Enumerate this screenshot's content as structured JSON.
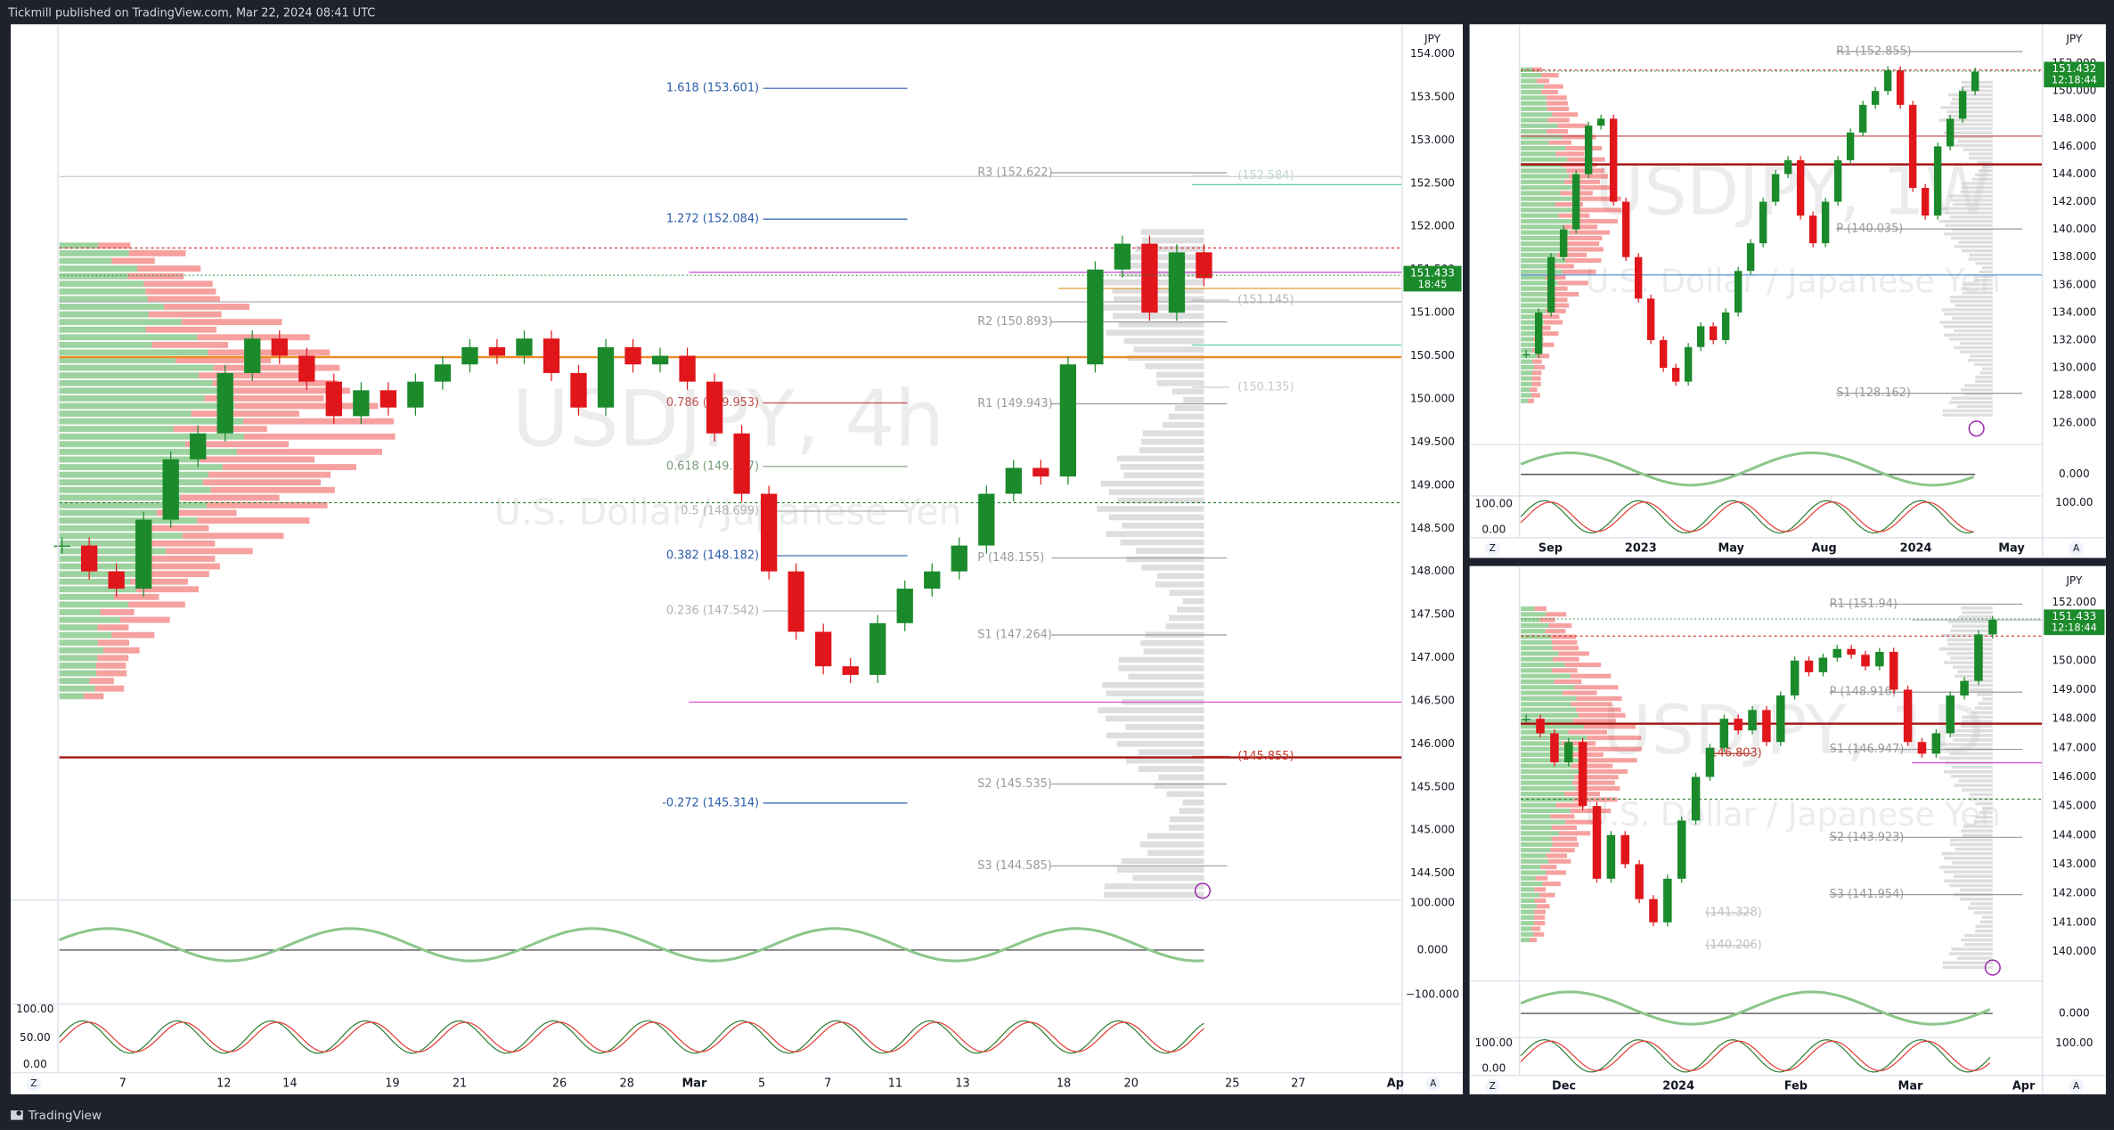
{
  "header": {
    "publisher": "Tickmill published on TradingView.com, Mar 22, 2024 08:41 UTC"
  },
  "footer": {
    "brand": "TradingView"
  },
  "panels": [
    {
      "currency": "JPY",
      "watermark_symbol": "USDJPY, 4h",
      "watermark_name": "U.S. Dollar / Japanese Yen",
      "price_ticks": [
        "154.000",
        "153.500",
        "153.000",
        "152.500",
        "152.000",
        "151.500",
        "151.000",
        "150.500",
        "150.000",
        "149.500",
        "149.000",
        "148.500",
        "148.000",
        "147.500",
        "147.000",
        "146.500",
        "146.000",
        "145.500",
        "145.000",
        "144.500"
      ],
      "last_price": "151.433",
      "countdown": "18:45",
      "osc_ticks": [
        "100.000",
        "0.000",
        "−100.000"
      ],
      "stoch_ticks": [
        "100.00",
        "50.00",
        "0.00"
      ],
      "time_labels": [
        "7",
        "12",
        "14",
        "19",
        "21",
        "26",
        "28",
        "Mar",
        "5",
        "7",
        "11",
        "13",
        "18",
        "20",
        "25",
        "27",
        "Ap"
      ],
      "fib_labels": [
        {
          "text": "1.618 (153.601)",
          "color": "#2a5caa"
        },
        {
          "text": "1.272 (152.084)",
          "color": "#2a5caa"
        },
        {
          "text": "0.786 (149.953)",
          "color": "#c0504d"
        },
        {
          "text": "0.618 (149.217)",
          "color": "#7a9a7a"
        },
        {
          "text": "0.5 (148.699)",
          "color": "#b0b0b0"
        },
        {
          "text": "0.382 (148.182)",
          "color": "#2a5caa"
        },
        {
          "text": "0.236 (147.542)",
          "color": "#b0b0b0"
        },
        {
          "text": "-0.272 (145.314)",
          "color": "#2a5caa"
        }
      ],
      "pivot_labels": [
        {
          "text": "R3 (152.622)",
          "color": "#9a9a9a"
        },
        {
          "text": "R2 (150.893)",
          "color": "#9a9a9a"
        },
        {
          "text": "R1 (149.943)",
          "color": "#9a9a9a"
        },
        {
          "text": "P (148.155)",
          "color": "#9a9a9a"
        },
        {
          "text": "S1 (147.264)",
          "color": "#9a9a9a"
        },
        {
          "text": "S2 (145.535)",
          "color": "#9a9a9a"
        },
        {
          "text": "S3 (144.585)",
          "color": "#9a9a9a"
        }
      ],
      "level_labels": [
        {
          "text": "(152.584)",
          "color": "#bfd6d0"
        },
        {
          "text": "(151.145)",
          "color": "#b8b8b8"
        },
        {
          "text": "(150.135)",
          "color": "#c8c8c8"
        },
        {
          "text": "(145.855)",
          "color": "#c0392b"
        }
      ],
      "closes": [
        148.3,
        148.0,
        147.8,
        148.6,
        149.3,
        149.6,
        150.3,
        150.7,
        150.5,
        150.2,
        149.8,
        150.1,
        149.9,
        150.2,
        150.4,
        150.6,
        150.5,
        150.7,
        150.3,
        149.9,
        150.6,
        150.4,
        150.5,
        150.2,
        149.6,
        148.9,
        148.0,
        147.3,
        146.9,
        146.8,
        147.4,
        147.8,
        148.0,
        148.3,
        148.9,
        149.2,
        149.1,
        150.4,
        151.5,
        151.8,
        151.0,
        151.7,
        151.4
      ],
      "scale_buttons": [
        "Z",
        "A"
      ]
    },
    {
      "currency": "JPY",
      "watermark_symbol": "USDJPY, 1W",
      "watermark_name": "U.S. Dollar / Japanese Yen",
      "price_ticks": [
        "152.000",
        "150.000",
        "148.000",
        "146.000",
        "144.000",
        "142.000",
        "140.000",
        "138.000",
        "136.000",
        "134.000",
        "132.000",
        "130.000",
        "128.000",
        "126.000"
      ],
      "last_price": "151.432",
      "countdown": "12:18:44",
      "osc_ticks": [
        "0.000",
        "100.00"
      ],
      "stoch_ticks": [
        "100.00",
        "0.00"
      ],
      "time_labels": [
        "Sep",
        "2023",
        "May",
        "Aug",
        "2024",
        "May"
      ],
      "pivot_labels": [
        {
          "text": "R1 (152.855)",
          "color": "#9a9a9a"
        },
        {
          "text": "P (140.035)",
          "color": "#9a9a9a"
        },
        {
          "text": "S1 (128.162)",
          "color": "#9a9a9a"
        }
      ],
      "closes": [
        131,
        134,
        138,
        140,
        144,
        147.5,
        148,
        142,
        138,
        135,
        132,
        130,
        129,
        131.5,
        133,
        132,
        134,
        137,
        139,
        142,
        144,
        145,
        141,
        139,
        142,
        145,
        147,
        149,
        150,
        151.5,
        149,
        143,
        141,
        146,
        148,
        150,
        151.4
      ],
      "scale_buttons": [
        "Z",
        "A"
      ]
    },
    {
      "currency": "JPY",
      "watermark_symbol": "USDJPY, 1D",
      "watermark_name": "U.S. Dollar / Japanese Yen",
      "price_ticks": [
        "152.000",
        "151.000",
        "150.000",
        "149.000",
        "148.000",
        "147.000",
        "146.000",
        "145.000",
        "144.000",
        "143.000",
        "142.000",
        "141.000",
        "140.000"
      ],
      "last_price": "151.433",
      "countdown": "12:18:44",
      "osc_ticks": [
        "0.000",
        "100.00"
      ],
      "stoch_ticks": [
        "100.00",
        "0.00"
      ],
      "time_labels": [
        "Dec",
        "2024",
        "Feb",
        "Mar",
        "Apr"
      ],
      "pivot_labels": [
        {
          "text": "R1 (151.94)",
          "color": "#9a9a9a"
        },
        {
          "text": "P (148.916)",
          "color": "#9a9a9a"
        },
        {
          "text": "S1 (146.947)",
          "color": "#9a9a9a"
        },
        {
          "text": "S2 (143.923)",
          "color": "#9a9a9a"
        },
        {
          "text": "S3 (141.954)",
          "color": "#9a9a9a"
        }
      ],
      "level_labels": [
        {
          "text": "(146.803)",
          "color": "#c0392b"
        },
        {
          "text": "(141.328)",
          "color": "#c0c0c0"
        },
        {
          "text": "(140.206)",
          "color": "#c0c0c0"
        }
      ],
      "closes": [
        148,
        147.5,
        146.5,
        147.2,
        145,
        142.5,
        144,
        143,
        141.8,
        141,
        142.5,
        144.5,
        146,
        147,
        148,
        147.6,
        148.3,
        147.2,
        148.8,
        150,
        149.6,
        150.1,
        150.4,
        150.2,
        149.8,
        150.3,
        149,
        147.2,
        146.8,
        147.5,
        148.8,
        149.3,
        150.9,
        151.4
      ],
      "scale_buttons": [
        "Z",
        "A"
      ]
    }
  ]
}
